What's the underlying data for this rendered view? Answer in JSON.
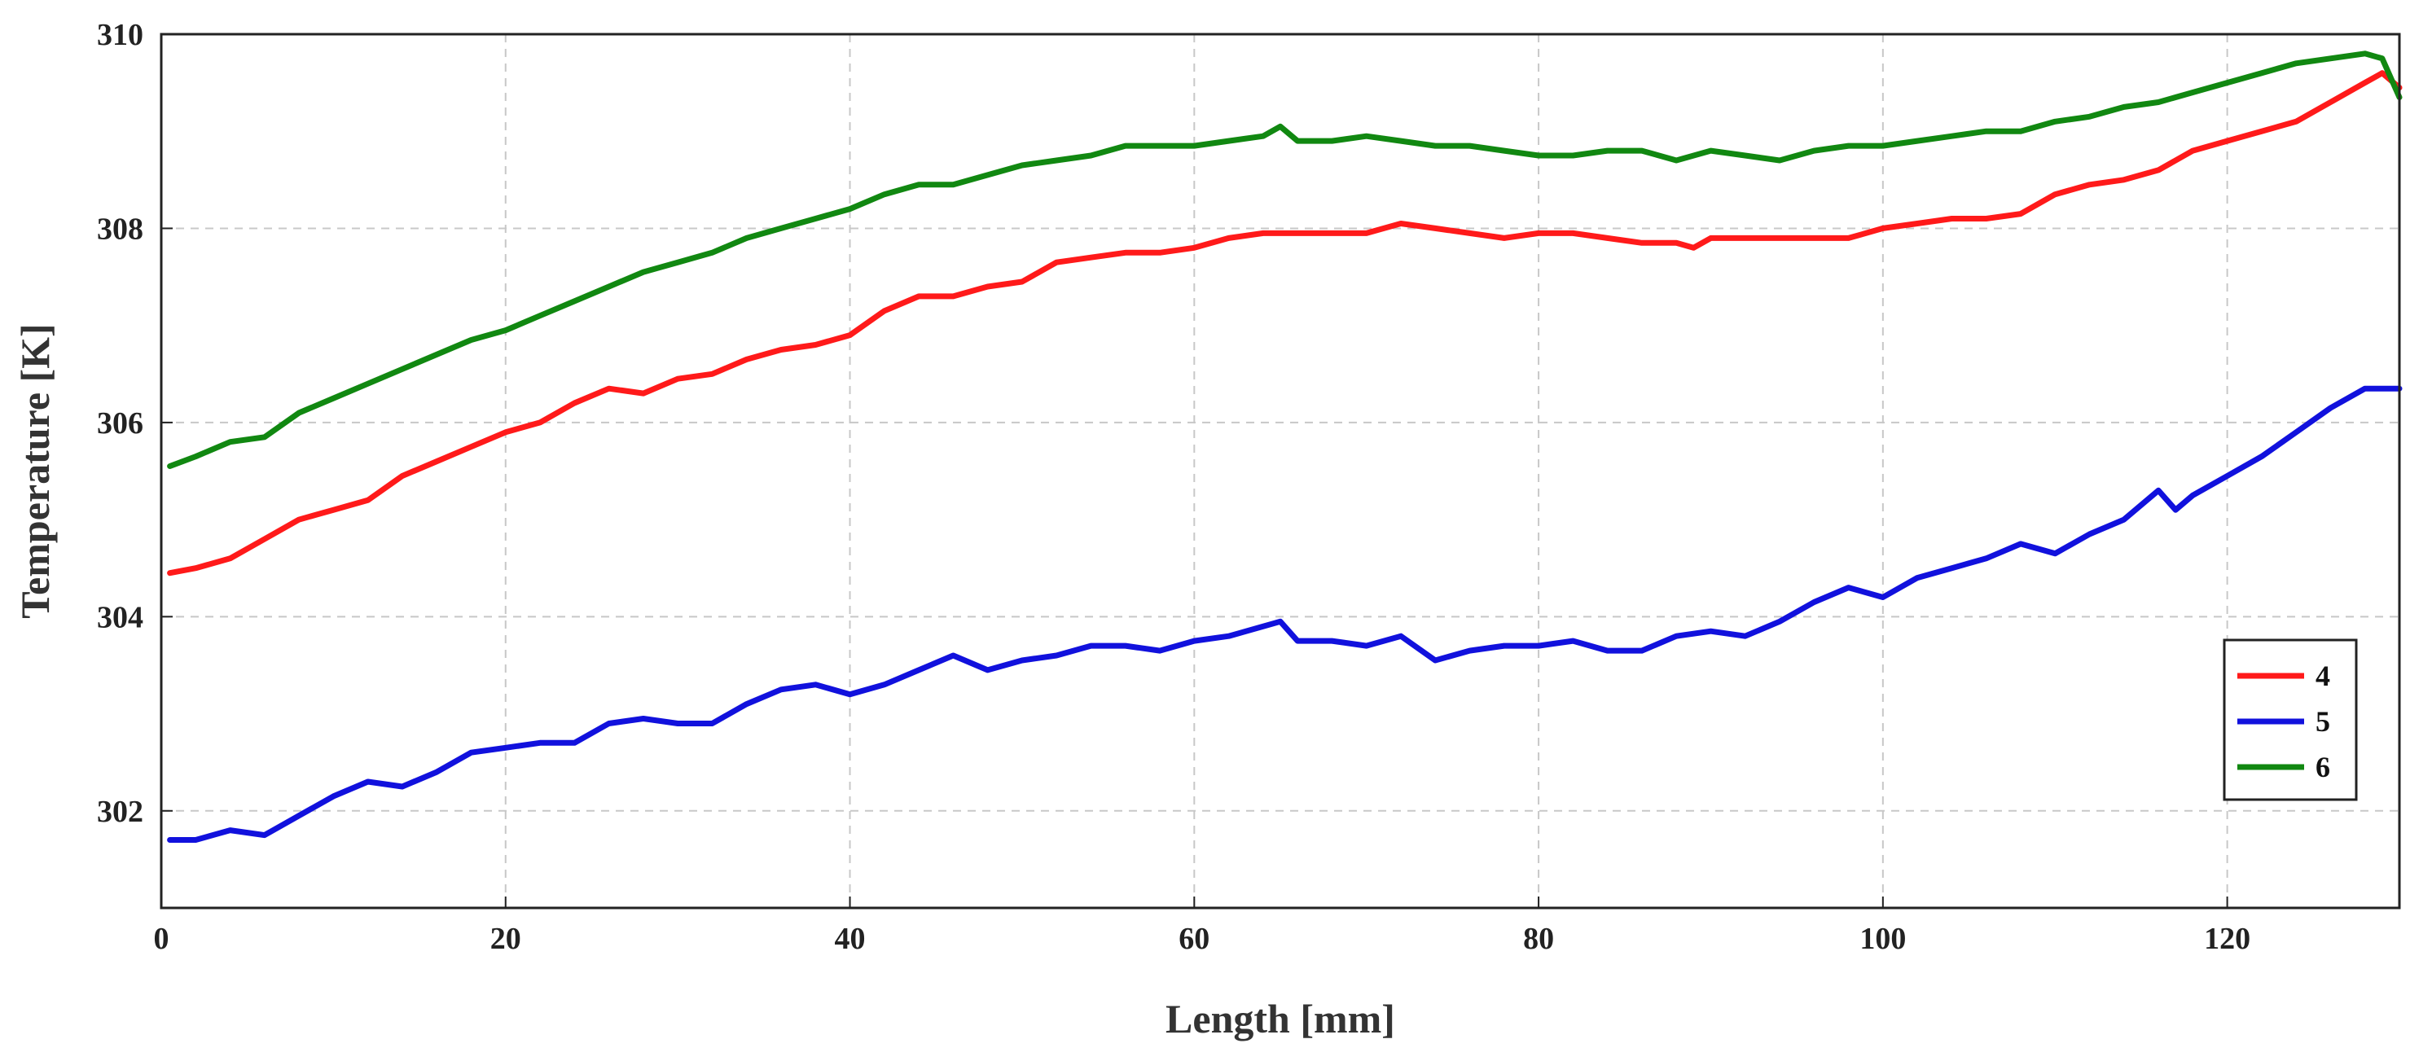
{
  "chart_data": {
    "type": "line",
    "title": "",
    "xlabel": "Length [mm]",
    "ylabel": "Temperature [K]",
    "xlim": [
      0,
      130
    ],
    "ylim": [
      301,
      310
    ],
    "xticks": [
      0,
      20,
      40,
      60,
      80,
      100,
      120
    ],
    "yticks": [
      302,
      304,
      306,
      308,
      310
    ],
    "grid": true,
    "legend_position": "right",
    "series": [
      {
        "name": "4",
        "color": "#ff1a1a",
        "x": [
          0.5,
          2,
          4,
          6,
          8,
          10,
          12,
          14,
          16,
          18,
          20,
          22,
          24,
          26,
          28,
          30,
          32,
          34,
          36,
          38,
          40,
          42,
          44,
          46,
          48,
          50,
          52,
          54,
          56,
          58,
          60,
          62,
          64,
          66,
          68,
          70,
          72,
          74,
          76,
          78,
          80,
          82,
          84,
          86,
          88,
          89,
          90,
          92,
          94,
          96,
          98,
          100,
          102,
          104,
          106,
          108,
          110,
          112,
          114,
          116,
          118,
          120,
          122,
          124,
          126,
          128,
          129,
          130
        ],
        "y": [
          304.45,
          304.5,
          304.6,
          304.8,
          305.0,
          305.1,
          305.2,
          305.45,
          305.6,
          305.75,
          305.9,
          306.0,
          306.2,
          306.35,
          306.3,
          306.45,
          306.5,
          306.65,
          306.75,
          306.8,
          306.9,
          307.15,
          307.3,
          307.3,
          307.4,
          307.45,
          307.65,
          307.7,
          307.75,
          307.75,
          307.8,
          307.9,
          307.95,
          307.95,
          307.95,
          307.95,
          308.05,
          308.0,
          307.95,
          307.9,
          307.95,
          307.95,
          307.9,
          307.85,
          307.85,
          307.8,
          307.9,
          307.9,
          307.9,
          307.9,
          307.9,
          308.0,
          308.05,
          308.1,
          308.1,
          308.15,
          308.35,
          308.45,
          308.5,
          308.6,
          308.8,
          308.9,
          309.0,
          309.1,
          309.3,
          309.5,
          309.6,
          309.45
        ]
      },
      {
        "name": "5",
        "color": "#1111dd",
        "x": [
          0.5,
          2,
          4,
          6,
          8,
          10,
          12,
          14,
          16,
          18,
          20,
          22,
          24,
          26,
          28,
          30,
          32,
          34,
          36,
          38,
          40,
          42,
          44,
          46,
          48,
          50,
          52,
          54,
          56,
          58,
          60,
          62,
          64,
          65,
          66,
          68,
          70,
          72,
          74,
          76,
          78,
          80,
          82,
          84,
          86,
          88,
          90,
          92,
          94,
          96,
          98,
          100,
          102,
          104,
          106,
          108,
          110,
          112,
          114,
          116,
          117,
          118,
          120,
          122,
          124,
          126,
          128,
          130
        ],
        "y": [
          301.7,
          301.7,
          301.8,
          301.75,
          301.95,
          302.15,
          302.3,
          302.25,
          302.4,
          302.6,
          302.65,
          302.7,
          302.7,
          302.9,
          302.95,
          302.9,
          302.9,
          303.1,
          303.25,
          303.3,
          303.2,
          303.3,
          303.45,
          303.6,
          303.45,
          303.55,
          303.6,
          303.7,
          303.7,
          303.65,
          303.75,
          303.8,
          303.9,
          303.95,
          303.75,
          303.75,
          303.7,
          303.8,
          303.55,
          303.65,
          303.7,
          303.7,
          303.75,
          303.65,
          303.65,
          303.8,
          303.85,
          303.8,
          303.95,
          304.15,
          304.3,
          304.2,
          304.4,
          304.5,
          304.6,
          304.75,
          304.65,
          304.85,
          305.0,
          305.3,
          305.1,
          305.25,
          305.45,
          305.65,
          305.9,
          306.15,
          306.35,
          306.35
        ]
      },
      {
        "name": "6",
        "color": "#118811",
        "x": [
          0.5,
          2,
          4,
          6,
          8,
          10,
          12,
          14,
          16,
          18,
          20,
          22,
          24,
          26,
          28,
          30,
          32,
          34,
          36,
          38,
          40,
          42,
          44,
          46,
          48,
          50,
          52,
          54,
          56,
          58,
          60,
          62,
          64,
          65,
          66,
          68,
          70,
          72,
          74,
          76,
          78,
          80,
          82,
          84,
          86,
          88,
          90,
          92,
          94,
          96,
          98,
          100,
          102,
          104,
          106,
          108,
          110,
          112,
          114,
          116,
          118,
          120,
          122,
          124,
          126,
          128,
          129,
          130
        ],
        "y": [
          305.55,
          305.65,
          305.8,
          305.85,
          306.1,
          306.25,
          306.4,
          306.55,
          306.7,
          306.85,
          306.95,
          307.1,
          307.25,
          307.4,
          307.55,
          307.65,
          307.75,
          307.9,
          308.0,
          308.1,
          308.2,
          308.35,
          308.45,
          308.45,
          308.55,
          308.65,
          308.7,
          308.75,
          308.85,
          308.85,
          308.85,
          308.9,
          308.95,
          309.05,
          308.9,
          308.9,
          308.95,
          308.9,
          308.85,
          308.85,
          308.8,
          308.75,
          308.75,
          308.8,
          308.8,
          308.7,
          308.8,
          308.75,
          308.7,
          308.8,
          308.85,
          308.85,
          308.9,
          308.95,
          309.0,
          309.0,
          309.1,
          309.15,
          309.25,
          309.3,
          309.4,
          309.5,
          309.6,
          309.7,
          309.75,
          309.8,
          309.75,
          309.35
        ]
      }
    ]
  }
}
